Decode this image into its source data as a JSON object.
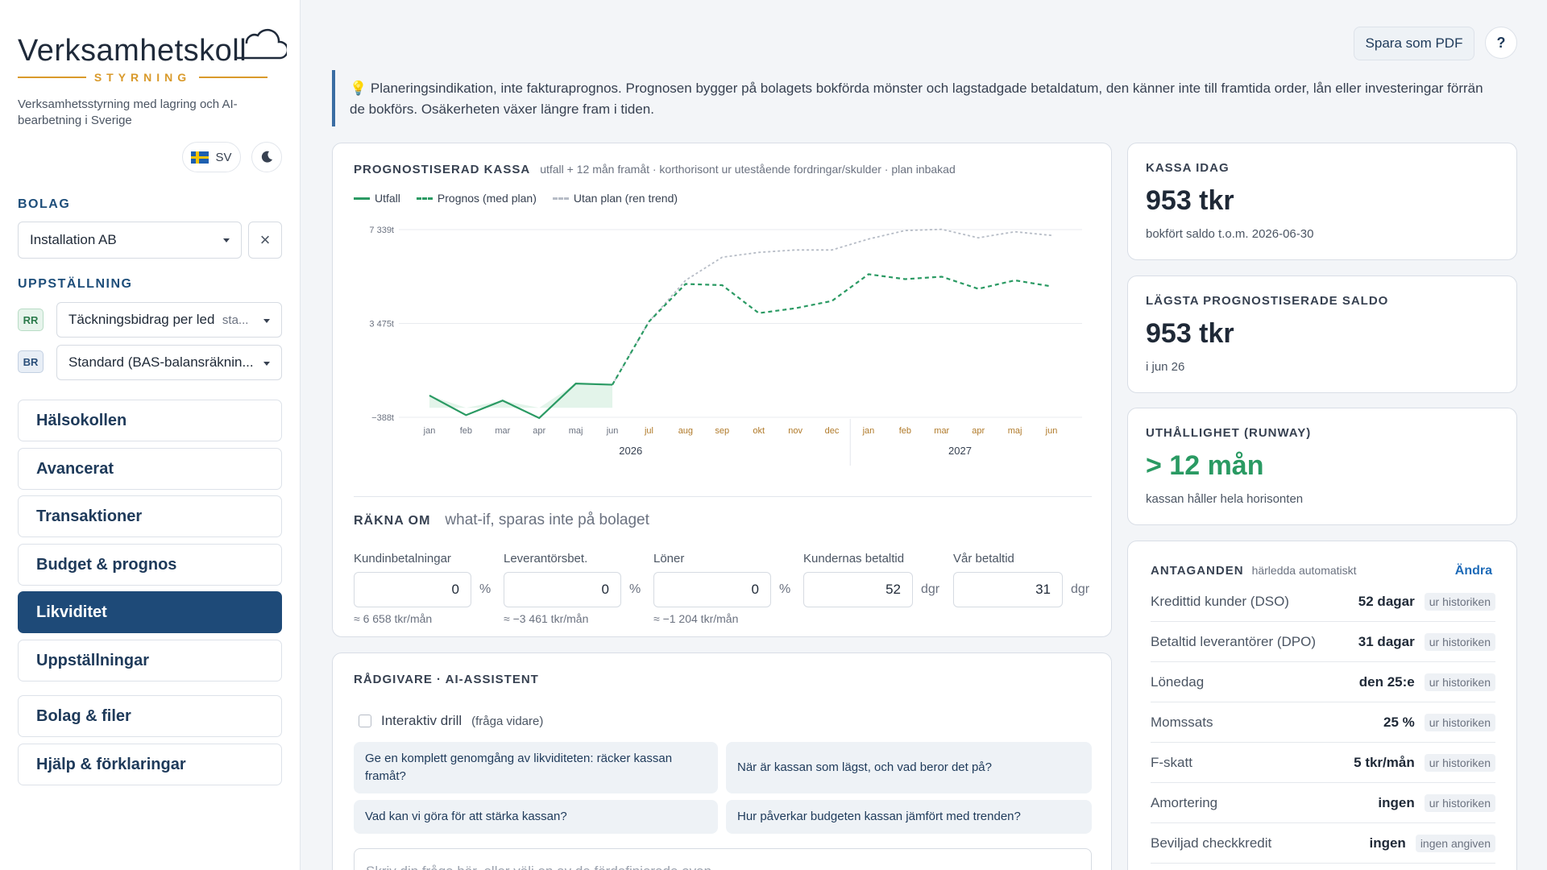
{
  "sidebar": {
    "logo_text": "Verksamhetskoll",
    "logo_sub": "STYRNING",
    "tagline": "Verksamhetsstyrning med lagring och AI-bearbetning i Sverige",
    "lang": "SV",
    "company_label": "BOLAG",
    "company_value": "Installation AB",
    "layout_label": "UPPSTÄLLNING",
    "rr_tag": "RR",
    "rr_value": "Täckningsbidrag per led",
    "rr_extra": "sta...",
    "br_tag": "BR",
    "br_value": "Standard (BAS-balansräknin...",
    "nav": [
      {
        "label": "Hälsokollen"
      },
      {
        "label": "Avancerat"
      },
      {
        "label": "Transaktioner"
      },
      {
        "label": "Budget & prognos"
      },
      {
        "label": "Likviditet",
        "active": true
      },
      {
        "label": "Uppställningar"
      },
      {
        "label": "Bolag & filer"
      },
      {
        "label": "Hjälp & förklaringar"
      }
    ]
  },
  "topbar": {
    "pdf_label": "Spara som PDF",
    "help_label": "?"
  },
  "notice": {
    "text": "Planeringsindikation, inte fakturaprognos. Prognosen bygger på bolagets bokförda mönster och lagstadgade betaldatum, den känner inte till framtida order, lån eller investeringar förrän de bokförs. Osäkerheten växer längre fram i tiden."
  },
  "forecast": {
    "title": "PROGNOSTISERAD KASSA",
    "subtitle": "utfall + 12 mån framåt · korthorisont ur utestående fordringar/skulder · plan inbakad",
    "legend": {
      "actual": "Utfall",
      "plan": "Prognos (med plan)",
      "trend": "Utan plan (ren trend)"
    }
  },
  "chart_data": {
    "type": "line",
    "x": [
      "jan",
      "feb",
      "mar",
      "apr",
      "maj",
      "jun",
      "jul",
      "aug",
      "sep",
      "okt",
      "nov",
      "dec",
      "jan",
      "feb",
      "mar",
      "apr",
      "maj",
      "jun"
    ],
    "year_labels": [
      "2026",
      "2027"
    ],
    "y_ticks": [
      "7 339t",
      "3 475t",
      "−388t"
    ],
    "ylim": [
      -388,
      7339
    ],
    "series": [
      {
        "name": "Utfall",
        "values": [
          510,
          -300,
          300,
          -420,
          1000,
          953,
          null,
          null,
          null,
          null,
          null,
          null,
          null,
          null,
          null,
          null,
          null,
          null
        ]
      },
      {
        "name": "Prognos (med plan)",
        "values": [
          null,
          null,
          null,
          null,
          null,
          953,
          3550,
          5100,
          5050,
          3900,
          4100,
          4400,
          5500,
          5300,
          5400,
          4900,
          5250,
          5000
        ]
      },
      {
        "name": "Utan plan (ren trend)",
        "values": [
          null,
          null,
          null,
          null,
          null,
          953,
          3550,
          5250,
          6200,
          6400,
          6500,
          6500,
          6950,
          7300,
          7350,
          7000,
          7250,
          7100
        ]
      }
    ],
    "colors": {
      "actual": "#2a9a63",
      "trend": "#b6bcc6",
      "fill": "#e3f4ea"
    }
  },
  "recalc": {
    "title": "RÄKNA OM",
    "subtitle": "what-if, sparas inte på bolaget",
    "fields": [
      {
        "label": "Kundinbetalningar",
        "value": "0",
        "unit": "%",
        "hint": "≈ 6 658 tkr/mån"
      },
      {
        "label": "Leverantörsbet.",
        "value": "0",
        "unit": "%",
        "hint": "≈ −3 461 tkr/mån"
      },
      {
        "label": "Löner",
        "value": "0",
        "unit": "%",
        "hint": "≈ −1 204 tkr/mån"
      },
      {
        "label": "Kundernas betaltid",
        "value": "52",
        "unit": "dgr",
        "hint": ""
      },
      {
        "label": "Vår betaltid",
        "value": "31",
        "unit": "dgr",
        "hint": ""
      }
    ]
  },
  "advisor": {
    "title": "RÅDGIVARE · AI-ASSISTENT",
    "drill_label": "Interaktiv drill",
    "drill_hint": "(fråga vidare)",
    "chips": [
      "Ge en komplett genomgång av likviditeten: räcker kassan framåt?",
      "När är kassan som lägst, och vad beror det på?",
      "Vad kan vi göra för att stärka kassan?",
      "Hur påverkar budgeten kassan jämfört med trenden?"
    ],
    "placeholder": "Skriv din fråga här, eller välj en av de fördefinierade ovan"
  },
  "kpis": [
    {
      "title": "KASSA IDAG",
      "value": "953 tkr",
      "desc": "bokfört saldo t.o.m. 2026-06-30"
    },
    {
      "title": "LÄGSTA PROGNOSTISERADE SALDO",
      "value": "953 tkr",
      "desc": "i jun 26"
    },
    {
      "title": "UTHÅLLIGHET (RUNWAY)",
      "value": "> 12 mån",
      "desc": "kassan håller hela horisonten"
    }
  ],
  "assumptions": {
    "title": "ANTAGANDEN",
    "subtitle": "härledda automatiskt",
    "edit_label": "Ändra",
    "rows": [
      {
        "key": "Kredittid kunder (DSO)",
        "value": "52 dagar",
        "source": "ur historiken"
      },
      {
        "key": "Betaltid leverantörer (DPO)",
        "value": "31 dagar",
        "source": "ur historiken"
      },
      {
        "key": "Lönedag",
        "value": "den 25:e",
        "source": "ur historiken"
      },
      {
        "key": "Momssats",
        "value": "25 %",
        "source": "ur historiken"
      },
      {
        "key": "F-skatt",
        "value": "5 tkr/mån",
        "source": "ur historiken"
      },
      {
        "key": "Amortering",
        "value": "ingen",
        "source": "ur historiken"
      },
      {
        "key": "Beviljad checkkredit",
        "value": "ingen",
        "source": "ingen angiven"
      }
    ]
  }
}
